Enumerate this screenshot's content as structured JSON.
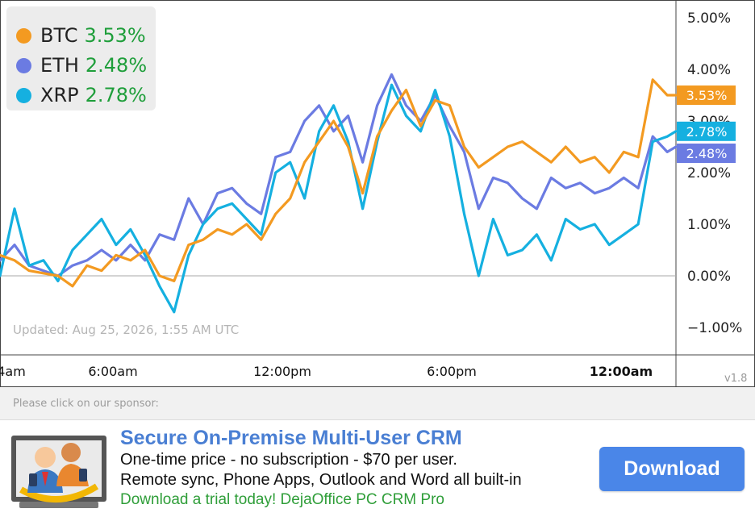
{
  "chart_data": {
    "type": "line",
    "title": "",
    "xlabel": "",
    "ylabel": "",
    "x_ticks": [
      "4am",
      "6:00am",
      "12:00pm",
      "6:00pm",
      "12:00am"
    ],
    "y_ticks": [
      "5.00%",
      "4.00%",
      "3.00%",
      "2.00%",
      "1.00%",
      "0.00%",
      "−1.00%"
    ],
    "ylim": [
      -1.5,
      5.3
    ],
    "x_hours_range": [
      4.0,
      27.3
    ],
    "grid": false,
    "zero_line": true,
    "legend_position": "top-left",
    "series": [
      {
        "name": "BTC",
        "color": "#f39a21",
        "final_label": "3.53%",
        "x": [
          4.0,
          4.5,
          5.0,
          5.5,
          6.0,
          6.5,
          7.0,
          7.5,
          8.0,
          8.5,
          9.0,
          9.5,
          10.0,
          10.5,
          11.0,
          11.5,
          12.0,
          12.5,
          13.0,
          13.5,
          14.0,
          14.5,
          15.0,
          15.5,
          16.0,
          16.5,
          17.0,
          17.5,
          18.0,
          18.5,
          19.0,
          19.5,
          20.0,
          20.5,
          21.0,
          21.5,
          22.0,
          22.5,
          23.0,
          23.5,
          24.0,
          24.5,
          25.0,
          25.5,
          26.0,
          26.5,
          27.0,
          27.3
        ],
        "y": [
          0.4,
          0.3,
          0.1,
          0.05,
          0.0,
          -0.2,
          0.2,
          0.1,
          0.4,
          0.3,
          0.5,
          0.0,
          -0.1,
          0.6,
          0.7,
          0.9,
          0.8,
          1.0,
          0.7,
          1.2,
          1.5,
          2.2,
          2.6,
          3.0,
          2.5,
          1.6,
          2.7,
          3.2,
          3.6,
          2.9,
          3.4,
          3.3,
          2.5,
          2.1,
          2.3,
          2.5,
          2.6,
          2.4,
          2.2,
          2.5,
          2.2,
          2.3,
          2.0,
          2.4,
          2.3,
          3.8,
          3.5,
          3.5
        ]
      },
      {
        "name": "ETH",
        "color": "#6b7be2",
        "final_label": "2.48%",
        "x": [
          4.0,
          4.5,
          5.0,
          5.5,
          6.0,
          6.5,
          7.0,
          7.5,
          8.0,
          8.5,
          9.0,
          9.5,
          10.0,
          10.5,
          11.0,
          11.5,
          12.0,
          12.5,
          13.0,
          13.5,
          14.0,
          14.5,
          15.0,
          15.5,
          16.0,
          16.5,
          17.0,
          17.5,
          18.0,
          18.5,
          19.0,
          19.5,
          20.0,
          20.5,
          21.0,
          21.5,
          22.0,
          22.5,
          23.0,
          23.5,
          24.0,
          24.5,
          25.0,
          25.5,
          26.0,
          26.5,
          27.0,
          27.3
        ],
        "y": [
          0.3,
          0.6,
          0.2,
          0.1,
          0.0,
          0.2,
          0.3,
          0.5,
          0.3,
          0.6,
          0.3,
          0.8,
          0.7,
          1.5,
          1.0,
          1.6,
          1.7,
          1.4,
          1.2,
          2.3,
          2.4,
          3.0,
          3.3,
          2.8,
          3.1,
          2.2,
          3.3,
          3.9,
          3.3,
          3.0,
          3.5,
          2.9,
          2.4,
          1.3,
          1.9,
          1.8,
          1.5,
          1.3,
          1.9,
          1.7,
          1.8,
          1.6,
          1.7,
          1.9,
          1.7,
          2.7,
          2.4,
          2.5
        ]
      },
      {
        "name": "XRP",
        "color": "#15b0e0",
        "final_label": "2.78%",
        "x": [
          4.0,
          4.5,
          5.0,
          5.5,
          6.0,
          6.5,
          7.0,
          7.5,
          8.0,
          8.5,
          9.0,
          9.5,
          10.0,
          10.5,
          11.0,
          11.5,
          12.0,
          12.5,
          13.0,
          13.5,
          14.0,
          14.5,
          15.0,
          15.5,
          16.0,
          16.5,
          17.0,
          17.5,
          18.0,
          18.5,
          19.0,
          19.5,
          20.0,
          20.5,
          21.0,
          21.5,
          22.0,
          22.5,
          23.0,
          23.5,
          24.0,
          24.5,
          25.0,
          25.5,
          26.0,
          26.5,
          27.0,
          27.3
        ],
        "y": [
          0.0,
          1.3,
          0.2,
          0.3,
          -0.1,
          0.5,
          0.8,
          1.1,
          0.6,
          0.9,
          0.4,
          -0.2,
          -0.7,
          0.4,
          1.0,
          1.3,
          1.4,
          1.1,
          0.8,
          2.0,
          2.2,
          1.5,
          2.8,
          3.3,
          2.6,
          1.3,
          2.6,
          3.7,
          3.1,
          2.8,
          3.6,
          2.7,
          1.2,
          0.0,
          1.1,
          0.4,
          0.5,
          0.8,
          0.3,
          1.1,
          0.9,
          1.0,
          0.6,
          0.8,
          1.0,
          2.6,
          2.7,
          2.8
        ]
      }
    ]
  },
  "legend": {
    "items": [
      {
        "name": "BTC",
        "value": "3.53%",
        "color": "#f39a21"
      },
      {
        "name": "ETH",
        "value": "2.48%",
        "color": "#6b7be2"
      },
      {
        "name": "XRP",
        "value": "2.78%",
        "color": "#15b0e0"
      }
    ]
  },
  "updated_text": "Updated: Aug 25, 2026, 1:55 AM UTC",
  "version": "v1.8",
  "sponsor": {
    "label": "Please click on our sponsor:",
    "title": "Secure On-Premise Multi-User CRM",
    "line1": "One-time price - no subscription - $70 per user.",
    "line2": "Remote sync, Phone Apps, Outlook and Word all built-in",
    "cta": "Download a trial today! DejaOffice PC CRM Pro",
    "button_label": "Download",
    "logo_icon": "crm-people-laptop-icon"
  }
}
